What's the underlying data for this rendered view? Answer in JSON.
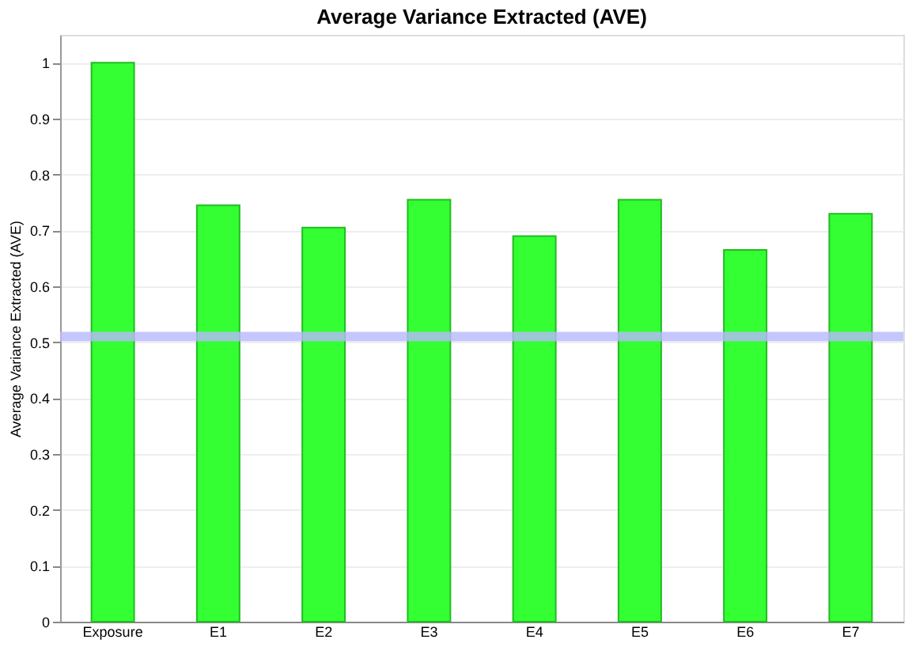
{
  "chart_data": {
    "type": "bar",
    "title": "Average Variance Extracted (AVE)",
    "ylabel": "Average Variance Extracted (AVE)",
    "categories": [
      "Exposure",
      "E1",
      "E2",
      "E3",
      "E4",
      "E5",
      "E6",
      "E7"
    ],
    "values": [
      1.0,
      0.745,
      0.705,
      0.755,
      0.69,
      0.755,
      0.665,
      0.73
    ],
    "color": "#33ff33",
    "ylim": [
      0,
      1.05
    ],
    "yticks": [
      0,
      0.1,
      0.2,
      0.3,
      0.4,
      0.5,
      0.6,
      0.7,
      0.8,
      0.9,
      1
    ],
    "grid": "y",
    "ref_lines": [
      {
        "axis": "y",
        "value": 0.51,
        "color": "#b8b8ff"
      }
    ]
  }
}
